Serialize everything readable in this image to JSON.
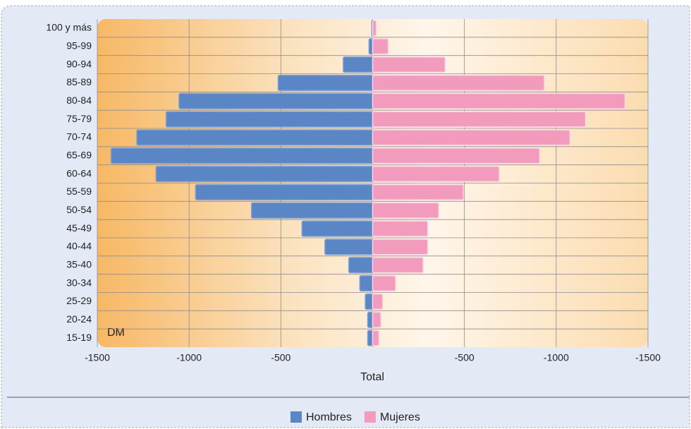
{
  "chart_data": {
    "type": "pyramid",
    "annotation": "DM",
    "xlabel": "Total",
    "categories": [
      "100 y más",
      "95-99",
      "90-94",
      "85-89",
      "80-84",
      "75-79",
      "70-74",
      "65-69",
      "60-64",
      "55-59",
      "50-54",
      "45-49",
      "40-44",
      "35-40",
      "30-34",
      "25-29",
      "20-24",
      "15-19"
    ],
    "series": [
      {
        "name": "Hombres",
        "color": "#5b86c5",
        "values": [
          -5,
          -20,
          -160,
          -515,
          -1055,
          -1125,
          -1285,
          -1425,
          -1180,
          -965,
          -660,
          -385,
          -260,
          -130,
          -70,
          -40,
          -27,
          -27
        ]
      },
      {
        "name": "Mujeres",
        "color": "#f29bbd",
        "values": [
          20,
          85,
          395,
          935,
          1375,
          1160,
          1075,
          910,
          690,
          495,
          360,
          300,
          300,
          275,
          125,
          55,
          45,
          35
        ]
      }
    ],
    "xlim": [
      -1500,
      1500
    ],
    "xticks": [
      -1500,
      -1000,
      -500,
      {
        "value": 500,
        "label": "-500"
      },
      {
        "value": 1000,
        "label": "-1000"
      },
      {
        "value": 1500,
        "label": "-1500"
      }
    ],
    "grid": true
  }
}
